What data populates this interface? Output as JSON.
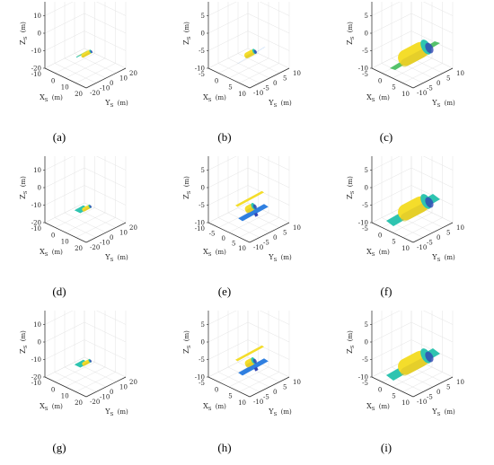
{
  "figure": {
    "panels": [
      {
        "caption": "(a)",
        "axis_labels": {
          "z": "Z",
          "z_sub": "S",
          "x": "X",
          "x_sub": "S",
          "y": "Y",
          "y_sub": "S",
          "unit": "(m)"
        },
        "z_ticks": [
          "20",
          "10",
          "0",
          "-10",
          "-20"
        ],
        "x_ticks": [
          "-10",
          "0",
          "10",
          "20"
        ],
        "y_ticks": [
          "20",
          "10",
          "0",
          "-10",
          "-20"
        ],
        "model": {
          "variant": "small-vertical",
          "scale": 0.55
        }
      },
      {
        "caption": "(b)",
        "axis_labels": {
          "z": "Z",
          "z_sub": "S",
          "x": "X",
          "x_sub": "S",
          "y": "Y",
          "y_sub": "S",
          "unit": "(m)"
        },
        "z_ticks": [
          "10",
          "5",
          "0",
          "-5",
          "-10"
        ],
        "x_ticks": [
          "-5",
          "0",
          "5",
          "10"
        ],
        "y_ticks": [
          "10",
          "5",
          "0",
          "-5",
          "-10"
        ],
        "model": {
          "variant": "thin-panel",
          "scale": 0.8
        }
      },
      {
        "caption": "(c)",
        "axis_labels": {
          "z": "Z",
          "z_sub": "S",
          "x": "X",
          "x_sub": "S",
          "y": "Y",
          "y_sub": "S",
          "unit": "(m)"
        },
        "z_ticks": [
          "10",
          "5",
          "0",
          "-5",
          "-10"
        ],
        "x_ticks": [
          "-5",
          "0",
          "5",
          "10"
        ],
        "y_ticks": [
          "10",
          "5",
          "0",
          "-5",
          "-10"
        ],
        "model": {
          "variant": "large-green",
          "scale": 1.0
        }
      },
      {
        "caption": "(d)",
        "axis_labels": {
          "z": "Z",
          "z_sub": "S",
          "x": "X",
          "x_sub": "S",
          "y": "Y",
          "y_sub": "S",
          "unit": "(m)"
        },
        "z_ticks": [
          "20",
          "10",
          "0",
          "-10",
          "-20"
        ],
        "x_ticks": [
          "-10",
          "0",
          "10",
          "20"
        ],
        "y_ticks": [
          "20",
          "10",
          "0",
          "-10",
          "-20"
        ],
        "model": {
          "variant": "small-teal",
          "scale": 0.55
        }
      },
      {
        "caption": "(e)",
        "axis_labels": {
          "z": "Z",
          "z_sub": "S",
          "x": "X",
          "x_sub": "S",
          "y": "Y",
          "y_sub": "S",
          "unit": "(m)"
        },
        "z_ticks": [
          "10",
          "5",
          "0",
          "-5",
          "-10"
        ],
        "x_ticks": [
          "-10",
          "-5",
          "0",
          "5",
          "10"
        ],
        "y_ticks": [
          "10",
          "5",
          "0",
          "-5",
          "-10"
        ],
        "model": {
          "variant": "two-panel",
          "scale": 0.8
        }
      },
      {
        "caption": "(f)",
        "axis_labels": {
          "z": "Z",
          "z_sub": "S",
          "x": "X",
          "x_sub": "S",
          "y": "Y",
          "y_sub": "S",
          "unit": "(m)"
        },
        "z_ticks": [
          "10",
          "5",
          "0",
          "-5",
          "-10"
        ],
        "x_ticks": [
          "-5",
          "0",
          "5",
          "10"
        ],
        "y_ticks": [
          "10",
          "5",
          "0",
          "-5",
          "-10"
        ],
        "model": {
          "variant": "large-teal",
          "scale": 1.0
        }
      },
      {
        "caption": "(g)",
        "axis_labels": {
          "z": "Z",
          "z_sub": "S",
          "x": "X",
          "x_sub": "S",
          "y": "Y",
          "y_sub": "S",
          "unit": "(m)"
        },
        "z_ticks": [
          "20",
          "10",
          "0",
          "-10",
          "-20"
        ],
        "x_ticks": [
          "-10",
          "0",
          "10",
          "20"
        ],
        "y_ticks": [
          "20",
          "10",
          "0",
          "-10",
          "-20"
        ],
        "model": {
          "variant": "small-teal",
          "scale": 0.55
        }
      },
      {
        "caption": "(h)",
        "axis_labels": {
          "z": "Z",
          "z_sub": "S",
          "x": "X",
          "x_sub": "S",
          "y": "Y",
          "y_sub": "S",
          "unit": "(m)"
        },
        "z_ticks": [
          "10",
          "5",
          "0",
          "-5",
          "-10"
        ],
        "x_ticks": [
          "-5",
          "0",
          "5",
          "10"
        ],
        "y_ticks": [
          "10",
          "5",
          "0",
          "-5",
          "-10"
        ],
        "model": {
          "variant": "two-panel",
          "scale": 0.8
        }
      },
      {
        "caption": "(i)",
        "axis_labels": {
          "z": "Z",
          "z_sub": "S",
          "x": "X",
          "x_sub": "S",
          "y": "Y",
          "y_sub": "S",
          "unit": "(m)"
        },
        "z_ticks": [
          "10",
          "5",
          "0",
          "-5",
          "-10"
        ],
        "x_ticks": [
          "-5",
          "0",
          "5",
          "10"
        ],
        "y_ticks": [
          "10",
          "5",
          "0",
          "-5",
          "-10"
        ],
        "model": {
          "variant": "large-teal",
          "scale": 1.0
        }
      }
    ],
    "colors": {
      "grid": "#e3e3e3",
      "axis": "#262626",
      "yellow": "#f4dd2b",
      "yellow_dark": "#d9c22a",
      "teal": "#2ec4b0",
      "blue": "#2f7fe0",
      "green": "#55c26b",
      "navy": "#3246b4"
    }
  }
}
